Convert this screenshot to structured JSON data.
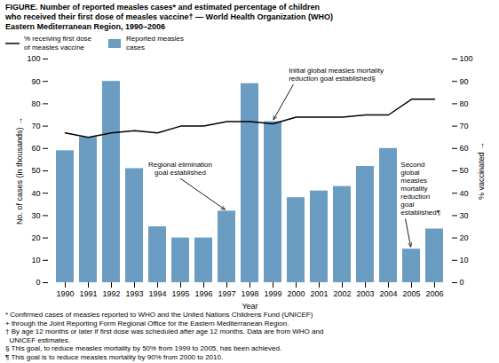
{
  "chart_data": {
    "type": "bar",
    "title": "FIGURE. Number of reported measles cases* and estimated percentage of children\nwho received their first dose of measles vaccine† — World Health Organization (WHO)\nEastern Mediterranean Region, 1990–2006",
    "categories": [
      "1990",
      "1991",
      "1992",
      "1993",
      "1994",
      "1995",
      "1996",
      "1997",
      "1998",
      "1999",
      "2000",
      "2001",
      "2002",
      "2003",
      "2004",
      "2005",
      "2006"
    ],
    "series": [
      {
        "name": "% receiving first dose\nof measles vaccine",
        "type": "line",
        "axis": "y2",
        "color": "#000000",
        "values": [
          67,
          65,
          67,
          68,
          67,
          70,
          70,
          72,
          72,
          71,
          74,
          74,
          74,
          75,
          75,
          82,
          82
        ]
      },
      {
        "name": "Reported measles\ncases",
        "type": "bar",
        "color": "#6B9DC2",
        "values": [
          59,
          65,
          90,
          51,
          25,
          20,
          20,
          32,
          89,
          72,
          38,
          41,
          43,
          52,
          60,
          15,
          24
        ]
      }
    ],
    "xlabel": "Year",
    "ylabel": "No. of cases (in thousands)",
    "y2label": "% vaccinated",
    "ylim": [
      0,
      100
    ],
    "yticks": [
      0,
      10,
      20,
      30,
      40,
      50,
      60,
      70,
      80,
      90,
      100
    ],
    "y2lim": [
      0,
      100
    ],
    "y2ticks": [
      0,
      10,
      20,
      30,
      40,
      50,
      60,
      70,
      80,
      90,
      100
    ],
    "grid": false,
    "legend": "upper left",
    "annotations": [
      {
        "text": "Regional elimination\ngoal established",
        "x": "1997",
        "y": 32
      },
      {
        "text": "Initial global measles mortality\nreduction goal established§",
        "x": "1999",
        "y": 72
      },
      {
        "text": "Second\nglobal\nmeasles\nmortality\nreduction\ngoal\nestablished¶",
        "x": "2005",
        "y": 15
      }
    ],
    "footnotes": [
      "* Confirmed cases of measles reported to WHO and the United Nations Childrens Fund (UNICEF)",
      "+ through the Joint Reporting Form Regional Office for the Eastern Mediterranean Region.",
      "† By age 12 months or later if first dose was scheduled after age 12 months. Data are from WHO and",
      "  UNICEF estimates.",
      "§ This goal, to reduce measles mortality by 50% from 1999 to 2005, has been achieved.",
      "¶ This goal is to reduce measles mortality by 90% from 2000 to 2010."
    ]
  }
}
